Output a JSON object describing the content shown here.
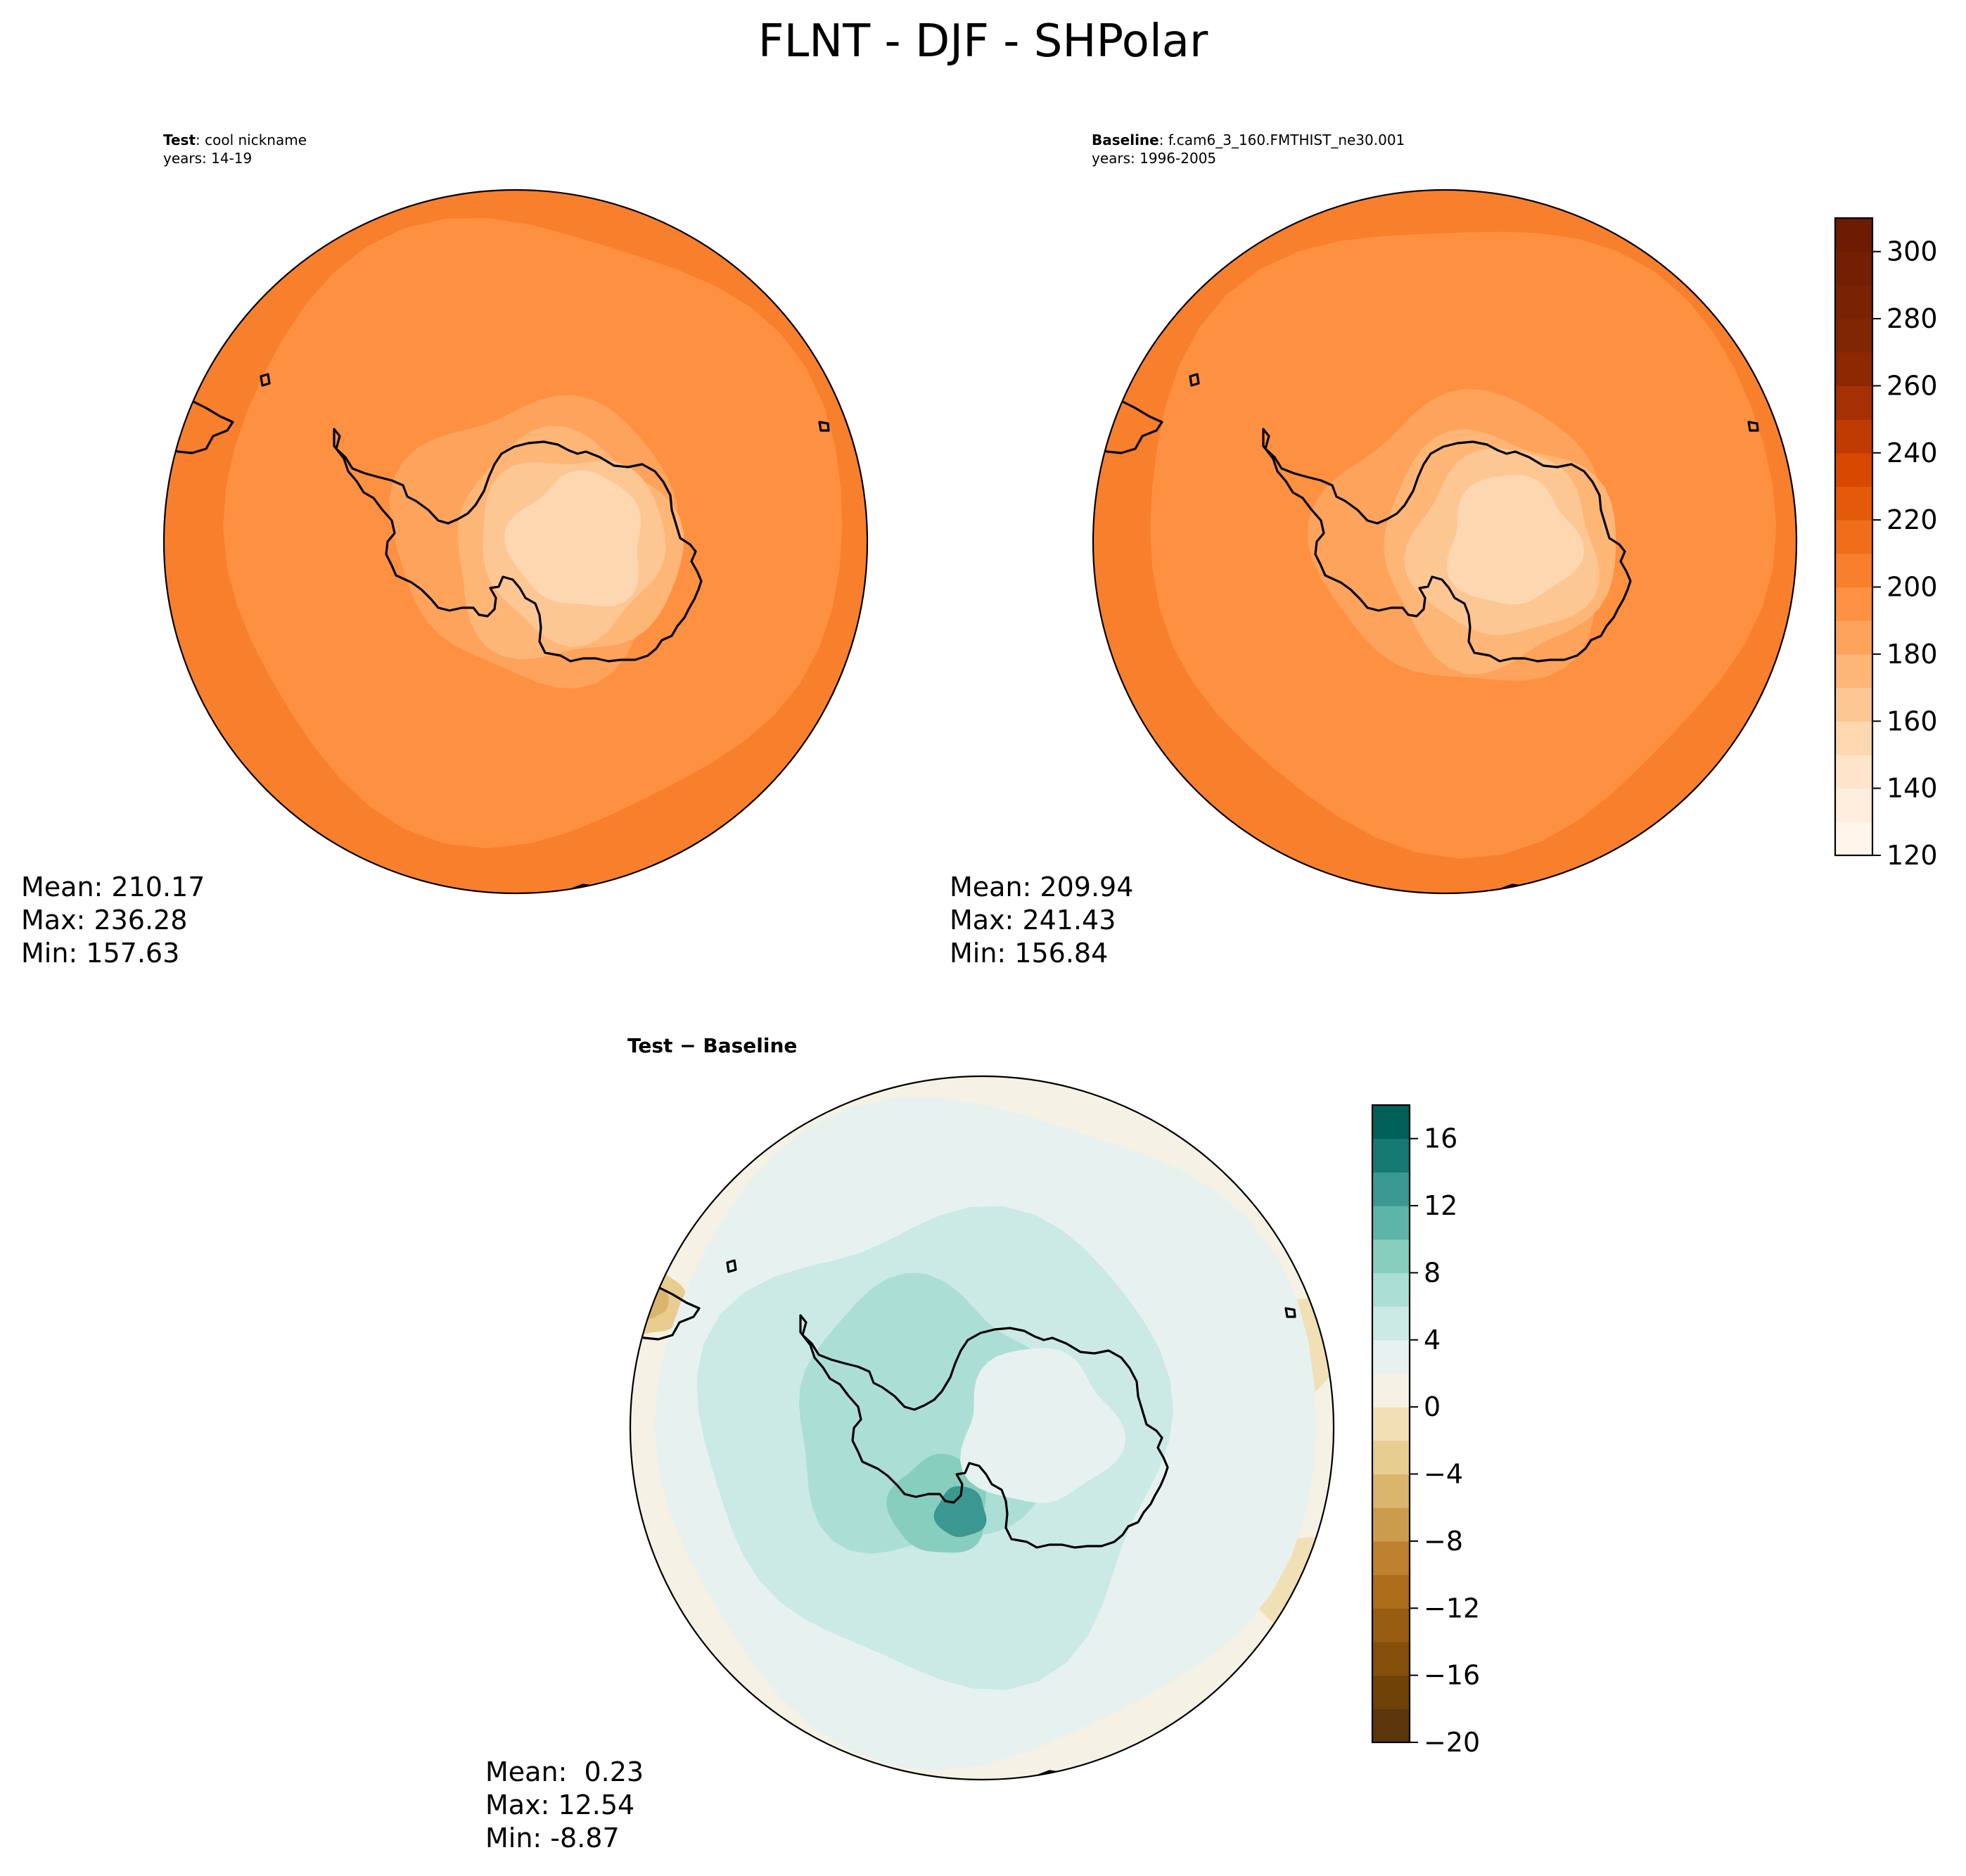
{
  "figure": {
    "title": "FLNT - DJF - SHPolar"
  },
  "chart_data": [
    {
      "type": "heatmap",
      "panel": "test",
      "title_label": "Test",
      "title_value": ": cool nickname",
      "subtitle": "years: 14-19",
      "stats": {
        "mean": "Mean: 210.17",
        "max": "Max: 236.28",
        "min": "Min: 157.63"
      },
      "colormap": "Oranges",
      "colorbar_shared_with": "baseline"
    },
    {
      "type": "heatmap",
      "panel": "baseline",
      "title_label": "Baseline",
      "title_value": ": f.cam6_3_160.FMTHIST_ne30.001",
      "subtitle": "years: 1996-2005",
      "stats": {
        "mean": "Mean: 209.94",
        "max": "Max: 241.43",
        "min": "Min: 156.84"
      },
      "colormap": "Oranges",
      "colorbar": {
        "range": [
          120,
          310
        ],
        "ticks": [
          120,
          140,
          160,
          180,
          200,
          220,
          240,
          260,
          280,
          300
        ],
        "tick_labels": [
          "120",
          "140",
          "160",
          "180",
          "200",
          "220",
          "240",
          "260",
          "280",
          "300"
        ],
        "levels": [
          120,
          130,
          140,
          150,
          160,
          170,
          180,
          190,
          200,
          210,
          220,
          230,
          240,
          250,
          260,
          270,
          280,
          290,
          300,
          310
        ],
        "colors": [
          "#fff5eb",
          "#feeddc",
          "#fee4ca",
          "#fdd7b0",
          "#fdc794",
          "#fdb676",
          "#fda35c",
          "#fd9141",
          "#f87f2c",
          "#f06e1a",
          "#e5590a",
          "#d84801",
          "#bf3b02",
          "#a53003",
          "#8d2803",
          "#7f2704",
          "#7a2304",
          "#741f04",
          "#6e1b04"
        ]
      }
    },
    {
      "type": "heatmap",
      "panel": "difference",
      "title": "Test − Baseline",
      "stats": {
        "mean": "Mean:  0.23",
        "max": "Max: 12.54",
        "min": "Min: -8.87"
      },
      "colormap": "BrBG",
      "colorbar": {
        "range": [
          -20,
          18
        ],
        "ticks": [
          -20,
          -16,
          -12,
          -8,
          -4,
          0,
          4,
          8,
          12,
          16
        ],
        "tick_labels": [
          "−20",
          "−16",
          "−12",
          "−8",
          "−4",
          "0",
          "4",
          "8",
          "12",
          "16"
        ],
        "levels": [
          -20,
          -18,
          -16,
          -14,
          -12,
          -10,
          -8,
          -6,
          -4,
          -2,
          0,
          2,
          4,
          6,
          8,
          10,
          12,
          14,
          16,
          18
        ],
        "colors": [
          "#5a360a",
          "#6f4308",
          "#844f0b",
          "#985d12",
          "#ad6d1a",
          "#be8130",
          "#cc9c4e",
          "#dab56e",
          "#e8cd91",
          "#f1e0b6",
          "#f5f1e4",
          "#e7f2f0",
          "#cbeae5",
          "#abdfd6",
          "#87cebf",
          "#5eb4a9",
          "#3a9890",
          "#167a73",
          "#02605a"
        ]
      }
    }
  ]
}
